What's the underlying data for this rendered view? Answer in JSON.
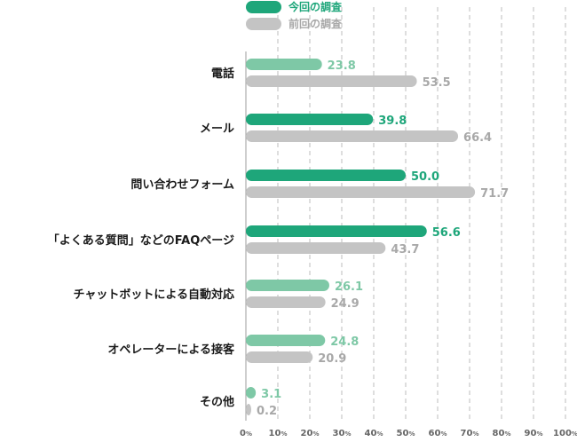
{
  "chart_data": {
    "type": "bar",
    "orientation": "horizontal",
    "categories": [
      "電話",
      "メール",
      "問い合わせフォーム",
      "「よくある質問」などのFAQページ",
      "チャットボットによる自動対応",
      "オペレーターによる接客",
      "その他"
    ],
    "series": [
      {
        "name": "今回の調査",
        "values": [
          23.8,
          39.8,
          50.0,
          56.6,
          26.1,
          24.8,
          3.1
        ]
      },
      {
        "name": "前回の調査",
        "values": [
          53.5,
          66.4,
          71.7,
          43.7,
          24.9,
          20.9,
          0.2
        ]
      }
    ],
    "value_labels": {
      "current": [
        "23.8",
        "39.8",
        "50.0",
        "56.6",
        "26.1",
        "24.8",
        "3.1"
      ],
      "previous": [
        "53.5",
        "66.4",
        "71.7",
        "43.7",
        "24.9",
        "20.9",
        "0.2"
      ]
    },
    "xlim": [
      0,
      100
    ],
    "ticks": [
      {
        "value": 0,
        "text": "0",
        "unit": "%"
      },
      {
        "value": 10,
        "text": "10",
        "unit": "%"
      },
      {
        "value": 20,
        "text": "20",
        "unit": "%"
      },
      {
        "value": 30,
        "text": "30",
        "unit": "%"
      },
      {
        "value": 40,
        "text": "40",
        "unit": "%"
      },
      {
        "value": 50,
        "text": "50",
        "unit": "%"
      },
      {
        "value": 60,
        "text": "60",
        "unit": "%"
      },
      {
        "value": 70,
        "text": "70",
        "unit": "%"
      },
      {
        "value": 80,
        "text": "80",
        "unit": "%"
      },
      {
        "value": 90,
        "text": "90",
        "unit": "%"
      },
      {
        "value": 100,
        "text": "100",
        "unit": "%"
      }
    ],
    "grid": true,
    "legend_position": "top-left",
    "colors": {
      "current": "#1ea67a",
      "current_light": "#7ec8a6",
      "previous": "#c4c4c4",
      "current_text": "#1ea67a",
      "current_text_light": "#7ec8a6",
      "previous_text": "#a8a8a8",
      "grid": "#bdbdbd"
    }
  }
}
